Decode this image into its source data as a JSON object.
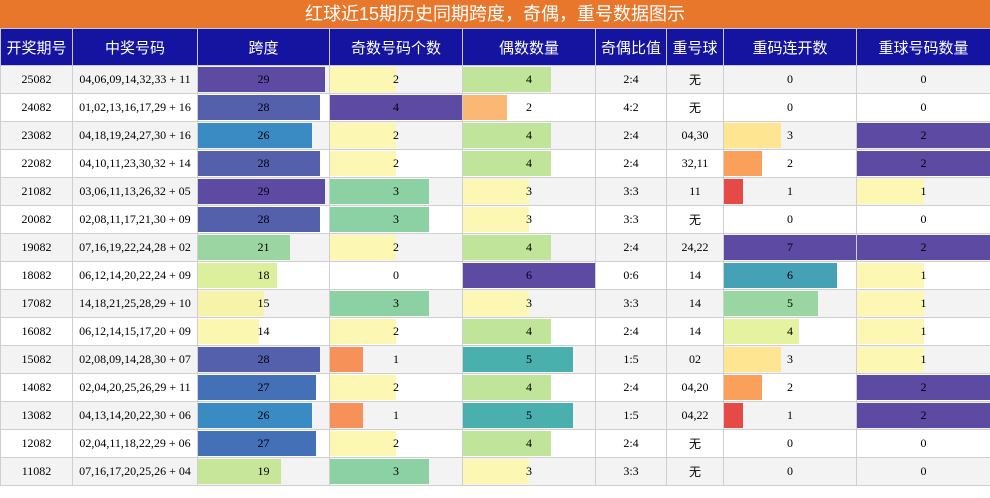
{
  "title": "红球近15期历史同期跨度，奇偶，重号数据图示",
  "headers": [
    "开奖期号",
    "中奖号码",
    "跨度",
    "奇数号码个数",
    "偶数数量",
    "奇偶比值",
    "重号球",
    "重码连开数",
    "重球号码数量"
  ],
  "colors": {
    "title_bg": "#e8762b",
    "header_bg": "#1414a0",
    "header_text": "#ffffff"
  },
  "chart_data": {
    "type": "table",
    "columns": [
      "开奖期号",
      "中奖号码",
      "跨度",
      "奇数号码个数",
      "偶数数量",
      "奇偶比值",
      "重号球",
      "重码连开数",
      "重球号码数量"
    ],
    "bar_scales": {
      "span_max": 30,
      "odd_max": 4,
      "even_max": 6,
      "repeat_consec_max": 7,
      "repeat_count_max": 2
    },
    "rows": [
      {
        "issue": "25082",
        "numbers": "04,06,09,14,32,33 + 11",
        "span": "29",
        "odd": "2",
        "even": "4",
        "ratio": "2:4",
        "repeat_balls": "无",
        "repeat_consec": "0",
        "repeat_count": "0"
      },
      {
        "issue": "24082",
        "numbers": "01,02,13,16,17,29 + 16",
        "span": "28",
        "odd": "4",
        "even": "2",
        "ratio": "4:2",
        "repeat_balls": "无",
        "repeat_consec": "0",
        "repeat_count": "0"
      },
      {
        "issue": "23082",
        "numbers": "04,18,19,24,27,30 + 16",
        "span": "26",
        "odd": "2",
        "even": "4",
        "ratio": "2:4",
        "repeat_balls": "04,30",
        "repeat_consec": "3",
        "repeat_count": "2"
      },
      {
        "issue": "22082",
        "numbers": "04,10,11,23,30,32 + 14",
        "span": "28",
        "odd": "2",
        "even": "4",
        "ratio": "2:4",
        "repeat_balls": "32,11",
        "repeat_consec": "2",
        "repeat_count": "2"
      },
      {
        "issue": "21082",
        "numbers": "03,06,11,13,26,32 + 05",
        "span": "29",
        "odd": "3",
        "even": "3",
        "ratio": "3:3",
        "repeat_balls": "11",
        "repeat_consec": "1",
        "repeat_count": "1"
      },
      {
        "issue": "20082",
        "numbers": "02,08,11,17,21,30 + 09",
        "span": "28",
        "odd": "3",
        "even": "3",
        "ratio": "3:3",
        "repeat_balls": "无",
        "repeat_consec": "0",
        "repeat_count": "0"
      },
      {
        "issue": "19082",
        "numbers": "07,16,19,22,24,28 + 02",
        "span": "21",
        "odd": "2",
        "even": "4",
        "ratio": "2:4",
        "repeat_balls": "24,22",
        "repeat_consec": "7",
        "repeat_count": "2"
      },
      {
        "issue": "18082",
        "numbers": "06,12,14,20,22,24 + 09",
        "span": "18",
        "odd": "0",
        "even": "6",
        "ratio": "0:6",
        "repeat_balls": "14",
        "repeat_consec": "6",
        "repeat_count": "1"
      },
      {
        "issue": "17082",
        "numbers": "14,18,21,25,28,29 + 10",
        "span": "15",
        "odd": "3",
        "even": "3",
        "ratio": "3:3",
        "repeat_balls": "14",
        "repeat_consec": "5",
        "repeat_count": "1"
      },
      {
        "issue": "16082",
        "numbers": "06,12,14,15,17,20 + 09",
        "span": "14",
        "odd": "2",
        "even": "4",
        "ratio": "2:4",
        "repeat_balls": "14",
        "repeat_consec": "4",
        "repeat_count": "1"
      },
      {
        "issue": "15082",
        "numbers": "02,08,09,14,28,30 + 07",
        "span": "28",
        "odd": "1",
        "even": "5",
        "ratio": "1:5",
        "repeat_balls": "02",
        "repeat_consec": "3",
        "repeat_count": "1"
      },
      {
        "issue": "14082",
        "numbers": "02,04,20,25,26,29 + 11",
        "span": "27",
        "odd": "2",
        "even": "4",
        "ratio": "2:4",
        "repeat_balls": "04,20",
        "repeat_consec": "2",
        "repeat_count": "2"
      },
      {
        "issue": "13082",
        "numbers": "04,13,14,20,22,30 + 06",
        "span": "26",
        "odd": "1",
        "even": "5",
        "ratio": "1:5",
        "repeat_balls": "04,22",
        "repeat_consec": "1",
        "repeat_count": "2"
      },
      {
        "issue": "12082",
        "numbers": "02,04,11,18,22,29 + 06",
        "span": "27",
        "odd": "2",
        "even": "4",
        "ratio": "2:4",
        "repeat_balls": "无",
        "repeat_consec": "0",
        "repeat_count": "0"
      },
      {
        "issue": "11082",
        "numbers": "07,16,17,20,25,26 + 04",
        "span": "19",
        "odd": "3",
        "even": "3",
        "ratio": "3:3",
        "repeat_balls": "无",
        "repeat_consec": "0",
        "repeat_count": "0"
      }
    ]
  }
}
